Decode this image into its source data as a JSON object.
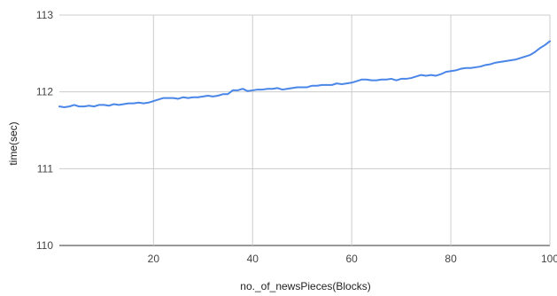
{
  "chart_data": {
    "type": "line",
    "title": "",
    "xlabel": "no._of_newsPieces(Blocks)",
    "ylabel": "time(sec)",
    "xlim": [
      1,
      100
    ],
    "ylim": [
      110,
      113
    ],
    "x_ticks": [
      20,
      40,
      60,
      80,
      100
    ],
    "y_ticks": [
      110,
      111,
      112,
      113
    ],
    "grid": true,
    "legend": "none",
    "series": [
      {
        "color": "#4a86e8",
        "x": [
          1,
          2,
          3,
          4,
          5,
          6,
          7,
          8,
          9,
          10,
          11,
          12,
          13,
          14,
          15,
          16,
          17,
          18,
          19,
          20,
          21,
          22,
          23,
          24,
          25,
          26,
          27,
          28,
          29,
          30,
          31,
          32,
          33,
          34,
          35,
          36,
          37,
          38,
          39,
          40,
          41,
          42,
          43,
          44,
          45,
          46,
          47,
          48,
          49,
          50,
          51,
          52,
          53,
          54,
          55,
          56,
          57,
          58,
          59,
          60,
          61,
          62,
          63,
          64,
          65,
          66,
          67,
          68,
          69,
          70,
          71,
          72,
          73,
          74,
          75,
          76,
          77,
          78,
          79,
          80,
          81,
          82,
          83,
          84,
          85,
          86,
          87,
          88,
          89,
          90,
          91,
          92,
          93,
          94,
          95,
          96,
          97,
          98,
          99,
          100
        ],
        "values": [
          111.81,
          111.8,
          111.81,
          111.83,
          111.81,
          111.81,
          111.82,
          111.81,
          111.83,
          111.83,
          111.82,
          111.84,
          111.83,
          111.84,
          111.85,
          111.85,
          111.86,
          111.85,
          111.86,
          111.88,
          111.9,
          111.92,
          111.92,
          111.92,
          111.91,
          111.93,
          111.92,
          111.93,
          111.93,
          111.94,
          111.95,
          111.94,
          111.95,
          111.97,
          111.97,
          112.02,
          112.02,
          112.04,
          112.01,
          112.02,
          112.03,
          112.03,
          112.04,
          112.04,
          112.05,
          112.03,
          112.04,
          112.05,
          112.06,
          112.06,
          112.06,
          112.08,
          112.08,
          112.09,
          112.09,
          112.09,
          112.11,
          112.1,
          112.11,
          112.12,
          112.14,
          112.16,
          112.16,
          112.15,
          112.15,
          112.16,
          112.16,
          112.17,
          112.15,
          112.17,
          112.17,
          112.18,
          112.2,
          112.22,
          112.21,
          112.22,
          112.21,
          112.23,
          112.26,
          112.27,
          112.28,
          112.3,
          112.31,
          112.31,
          112.32,
          112.33,
          112.35,
          112.36,
          112.38,
          112.39,
          112.4,
          112.41,
          112.42,
          112.44,
          112.46,
          112.48,
          112.52,
          112.57,
          112.61,
          112.66
        ]
      }
    ]
  }
}
